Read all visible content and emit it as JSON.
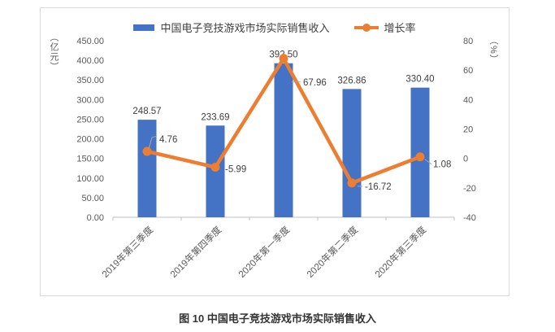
{
  "caption": "图 10 中国电子竞技游戏市场实际销售收入",
  "colors": {
    "bar": "#4472C4",
    "line": "#ED7D31",
    "tick_text": "#595959",
    "data_label": "#3F3F3F",
    "axis_line": "#BFBFBF",
    "leader_line": "#A6A6A6",
    "frame_border": "#D9D9D9",
    "caption_text": "#333333"
  },
  "chart_data": {
    "type": "bar+line combo",
    "title": "图 10 中国电子竞技游戏市场实际销售收入",
    "categories": [
      "2019年第三季度",
      "2019年第四季度",
      "2020年第一季度",
      "2020年第二季度",
      "2020年第三季度"
    ],
    "series": [
      {
        "name": "中国电子竞技游戏市场实际销售收入",
        "type": "bar",
        "axis": "left",
        "color": "#4472C4",
        "values": [
          248.57,
          233.69,
          392.5,
          326.86,
          330.4
        ]
      },
      {
        "name": "增长率",
        "type": "line",
        "axis": "right",
        "color": "#ED7D31",
        "values": [
          4.76,
          -5.99,
          67.96,
          -16.72,
          1.08
        ]
      }
    ],
    "left_axis": {
      "label": "（亿元）",
      "range": [
        0,
        450
      ],
      "tick_step": 50,
      "tick_labels": [
        "450.00",
        "400.00",
        "350.00",
        "300.00",
        "250.00",
        "200.00",
        "150.00",
        "100.00",
        "50.00",
        "0.00"
      ]
    },
    "right_axis": {
      "label": "（%）",
      "range": [
        -40,
        80
      ],
      "tick_step": 20,
      "tick_labels": [
        "80",
        "60",
        "40",
        "20",
        "0",
        "-20",
        "-40"
      ]
    },
    "grid": false,
    "legend_position": "top"
  }
}
